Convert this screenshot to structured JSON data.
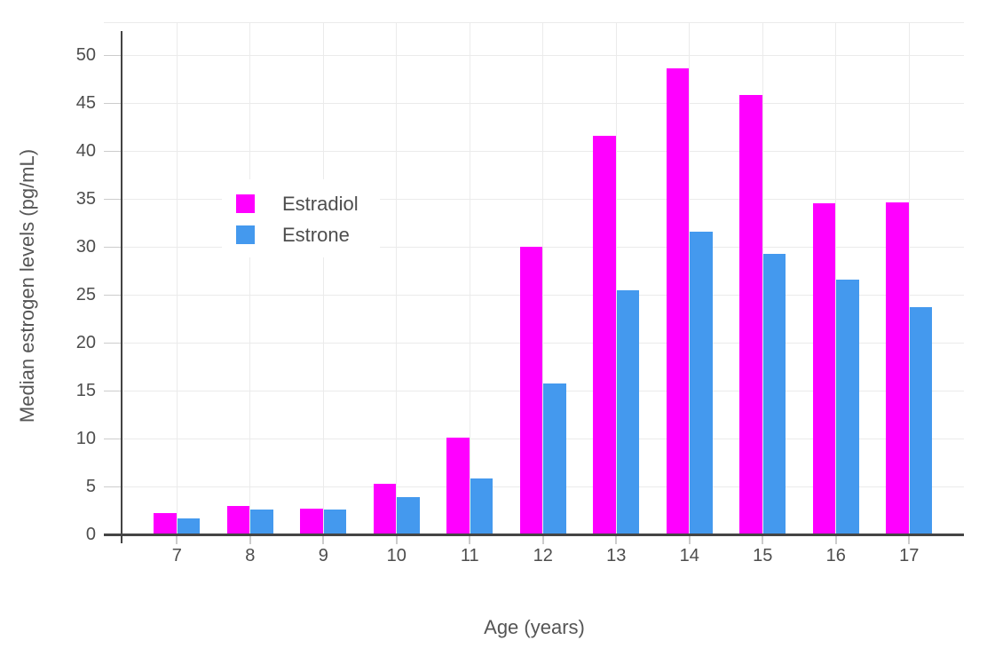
{
  "chart_data": {
    "type": "bar",
    "title": "",
    "xlabel": "Age (years)",
    "ylabel": "Median estrogen levels (pg/mL)",
    "categories": [
      "7",
      "8",
      "9",
      "10",
      "11",
      "12",
      "13",
      "14",
      "15",
      "16",
      "17"
    ],
    "series": [
      {
        "name": "Estradiol",
        "color": "#ff00ff",
        "values": [
          2.2,
          3.0,
          2.7,
          5.3,
          10.1,
          30.0,
          41.6,
          48.6,
          45.8,
          34.5,
          34.6
        ]
      },
      {
        "name": "Estrone",
        "color": "#4499ee",
        "values": [
          1.7,
          2.6,
          2.6,
          3.9,
          5.8,
          15.7,
          25.5,
          31.6,
          29.3,
          26.6,
          23.7
        ]
      }
    ],
    "yticks": [
      0,
      5,
      10,
      15,
      20,
      25,
      30,
      35,
      40,
      45,
      50
    ],
    "ylim": [
      0,
      53.4
    ],
    "grid": true,
    "legend_position": "inside-upper-left",
    "colors": {
      "grid": "#ebebeb",
      "tick": "#cccccc",
      "axis": "#444444",
      "text": "#4d4d4d",
      "background": "#ffffff"
    }
  }
}
